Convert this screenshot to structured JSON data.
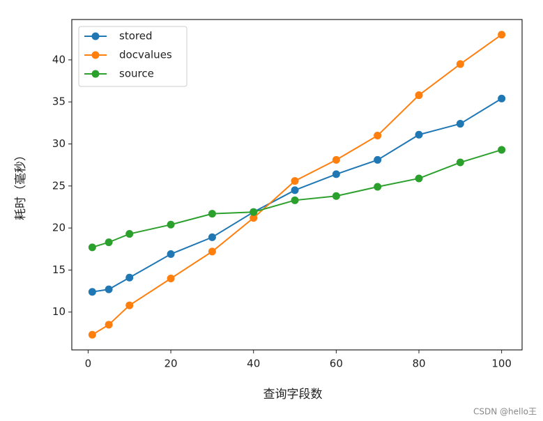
{
  "chart_data": {
    "type": "line",
    "x_label": "查询字段数",
    "y_label": "耗时（毫秒）",
    "x": [
      1,
      5,
      10,
      20,
      30,
      40,
      50,
      60,
      70,
      80,
      90,
      100
    ],
    "series": [
      {
        "name": "stored",
        "color": "#1f77b4",
        "values": [
          12.4,
          12.7,
          14.1,
          16.9,
          18.9,
          21.9,
          24.5,
          26.4,
          28.1,
          31.1,
          32.4,
          35.4
        ]
      },
      {
        "name": "docvalues",
        "color": "#ff7f0e",
        "values": [
          7.3,
          8.5,
          10.8,
          14.0,
          17.2,
          21.2,
          25.6,
          28.1,
          31.0,
          35.8,
          39.5,
          43.0
        ]
      },
      {
        "name": "source",
        "color": "#2ca02c",
        "values": [
          17.7,
          18.3,
          19.3,
          20.4,
          21.7,
          21.9,
          23.3,
          23.8,
          24.9,
          25.9,
          27.8,
          29.3
        ]
      }
    ],
    "xlim": [
      -3.95,
      104.95
    ],
    "xticks": [
      0,
      20,
      40,
      60,
      80,
      100
    ],
    "ylim": [
      5.5,
      44.8
    ],
    "yticks": [
      10,
      15,
      20,
      25,
      30,
      35,
      40
    ],
    "legend": "upper left",
    "grid": false,
    "watermark": "CSDN @hello王"
  }
}
